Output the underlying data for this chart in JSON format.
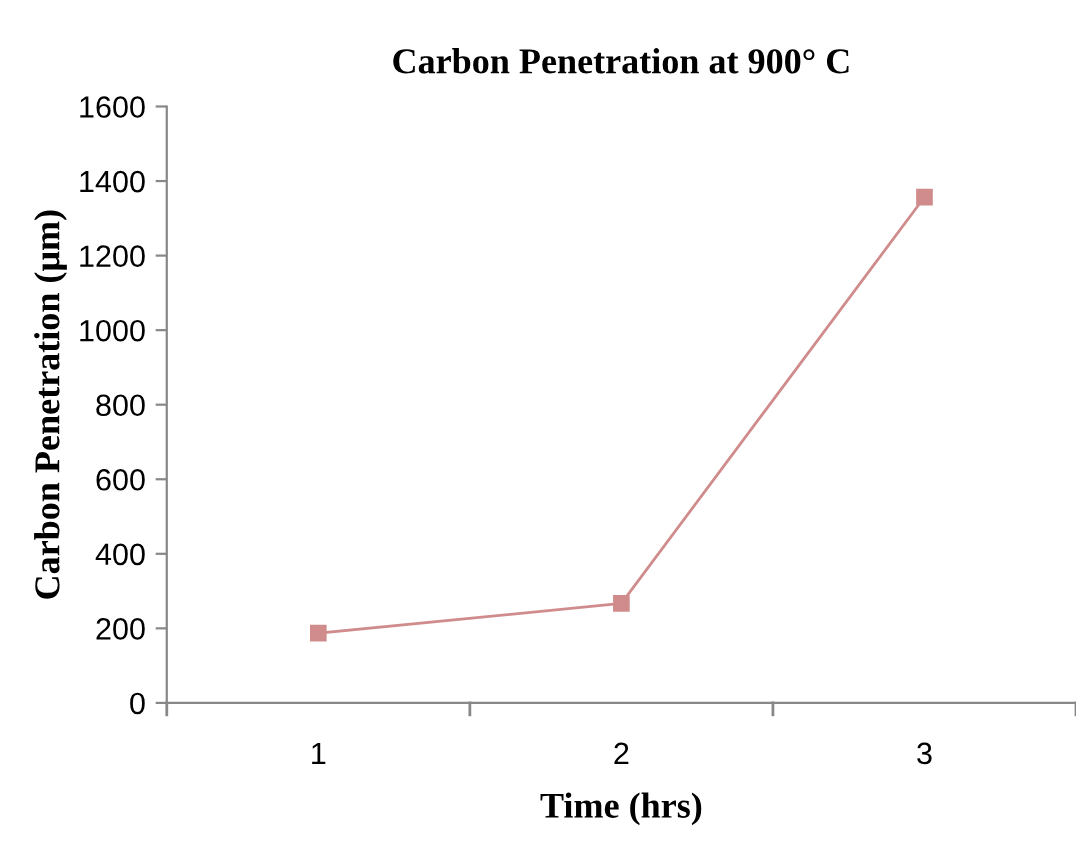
{
  "chart_data": {
    "type": "line",
    "title": "Carbon Penetration at 900° C",
    "xlabel": "Time (hrs)",
    "ylabel": "Carbon Penetration (μm)",
    "categories": [
      "1",
      "2",
      "3"
    ],
    "series": [
      {
        "color": "#d08c8c",
        "values": [
          187,
          267,
          1357
        ]
      }
    ],
    "ylim": [
      0,
      1600
    ],
    "yticks": [
      0,
      200,
      400,
      600,
      800,
      1000,
      1200,
      1400,
      1600
    ],
    "marker": "square",
    "grid": false,
    "legend": false
  }
}
